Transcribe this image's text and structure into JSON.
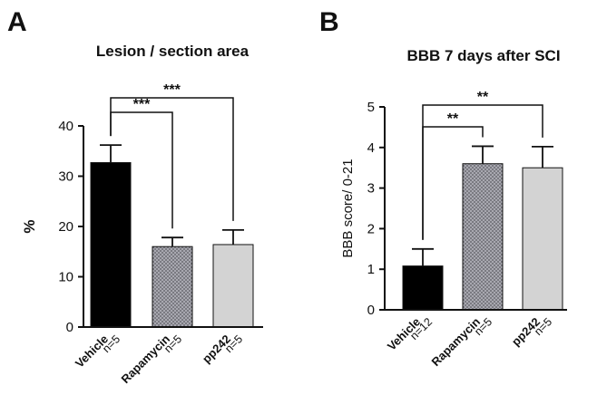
{
  "chart_data": [
    {
      "panel": "A",
      "type": "bar",
      "title": "Lesion / section area",
      "ylabel": "%",
      "xlabel": "",
      "ylim": [
        0,
        40
      ],
      "yticks": [
        0,
        10,
        20,
        30,
        40
      ],
      "categories": [
        "Vehicle",
        "Rapamycin",
        "pp242"
      ],
      "n_labels": [
        "n=5",
        "n=5",
        "n=5"
      ],
      "values": [
        32.7,
        16.0,
        16.4
      ],
      "errors": [
        3.5,
        1.8,
        2.9
      ],
      "fills": [
        "#000000",
        "dots",
        "#d3d3d3"
      ],
      "significance": [
        {
          "from": 0,
          "to": 1,
          "label": "***",
          "level": "low"
        },
        {
          "from": 0,
          "to": 2,
          "label": "***",
          "level": "high"
        }
      ]
    },
    {
      "panel": "B",
      "type": "bar",
      "title": "BBB 7 days after SCI",
      "ylabel": "BBB score/ 0-21",
      "xlabel": "",
      "ylim": [
        0,
        5
      ],
      "yticks": [
        0,
        1,
        2,
        3,
        4,
        5
      ],
      "categories": [
        "Vehicle",
        "Rapamycin",
        "pp242"
      ],
      "n_labels": [
        "n=12",
        "n=5",
        "n=5"
      ],
      "values": [
        1.08,
        3.6,
        3.5
      ],
      "errors": [
        0.42,
        0.43,
        0.52
      ],
      "fills": [
        "#000000",
        "dots",
        "#d3d3d3"
      ],
      "significance": [
        {
          "from": 0,
          "to": 1,
          "label": "**",
          "level": "low"
        },
        {
          "from": 0,
          "to": 2,
          "label": "**",
          "level": "high"
        }
      ]
    }
  ],
  "colors": {
    "vehicle": "#000000",
    "rapamycin_bg": "#a8a8b0",
    "rapamycin_dot": "#58585f",
    "pp242": "#d3d3d3"
  }
}
